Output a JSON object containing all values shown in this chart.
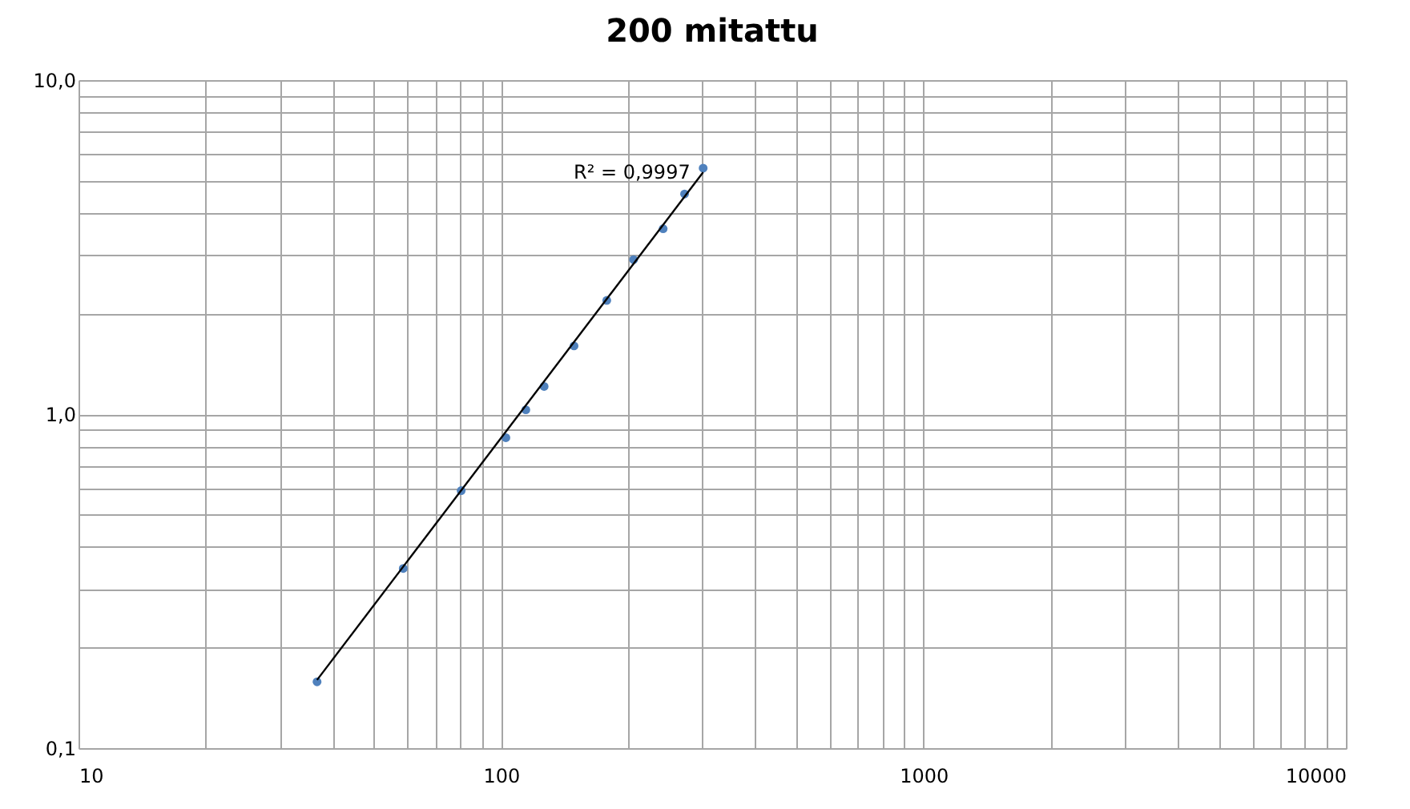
{
  "chart_data": {
    "type": "scatter",
    "title": "200 mitattu",
    "xlim": [
      10,
      10000
    ],
    "ylim": [
      0.1,
      10
    ],
    "log": "xy",
    "grid": true,
    "legend": false,
    "marker": "circle",
    "xticks": [
      10,
      {
        "value": 20,
        "label": null
      },
      {
        "value": 30,
        "label": null
      },
      {
        "value": 40,
        "label": null
      },
      {
        "value": 50,
        "label": null
      },
      {
        "value": 60,
        "label": null
      },
      {
        "value": 70,
        "label": null
      },
      {
        "value": 80,
        "label": null
      },
      {
        "value": 90,
        "label": null
      },
      100,
      {
        "value": 200,
        "label": null
      },
      {
        "value": 300,
        "label": null
      },
      {
        "value": 400,
        "label": null
      },
      {
        "value": 500,
        "label": null
      },
      {
        "value": 600,
        "label": null
      },
      {
        "value": 700,
        "label": null
      },
      {
        "value": 800,
        "label": null
      },
      {
        "value": 900,
        "label": null
      },
      1000,
      {
        "value": 2000,
        "label": null
      },
      {
        "value": 3000,
        "label": null
      },
      {
        "value": 4000,
        "label": null
      },
      {
        "value": 5000,
        "label": null
      },
      {
        "value": 6000,
        "label": null
      },
      {
        "value": 7000,
        "label": null
      },
      {
        "value": 8000,
        "label": null
      },
      {
        "value": 9000,
        "label": null
      },
      10000
    ],
    "yticks": [
      {
        "value": 0.1,
        "label": "0,1"
      },
      {
        "value": 0.2,
        "label": null
      },
      {
        "value": 0.3,
        "label": null
      },
      {
        "value": 0.4,
        "label": null
      },
      {
        "value": 0.5,
        "label": null
      },
      {
        "value": 0.6,
        "label": null
      },
      {
        "value": 0.7,
        "label": null
      },
      {
        "value": 0.8,
        "label": null
      },
      {
        "value": 0.9,
        "label": null
      },
      {
        "value": 1,
        "label": "1,0"
      },
      {
        "value": 2,
        "label": null
      },
      {
        "value": 3,
        "label": null
      },
      {
        "value": 4,
        "label": null
      },
      {
        "value": 5,
        "label": null
      },
      {
        "value": 6,
        "label": null
      },
      {
        "value": 7,
        "label": null
      },
      {
        "value": 8,
        "label": null
      },
      {
        "value": 9,
        "label": null
      },
      {
        "value": 10,
        "label": "10,0"
      }
    ],
    "series": [
      {
        "color": "#4f81bd",
        "x": [
          36.7,
          58.7,
          80.5,
          102.7,
          114.5,
          126.5,
          148.9,
          178,
          206,
          242,
          272,
          301
        ],
        "values": [
          0.158,
          0.345,
          0.59,
          0.85,
          1.03,
          1.21,
          1.6,
          2.19,
          2.9,
          3.59,
          4.56,
          5.45
        ]
      },
      {
        "type": "line",
        "marker": "none",
        "line_style": "solid",
        "color": "#000000",
        "x": [
          36.7,
          301
        ],
        "values": [
          0.16,
          5.3
        ]
      }
    ],
    "annotations": [
      {
        "text": "R² = 0,9997",
        "x": 301,
        "y": 5.3
      }
    ]
  }
}
